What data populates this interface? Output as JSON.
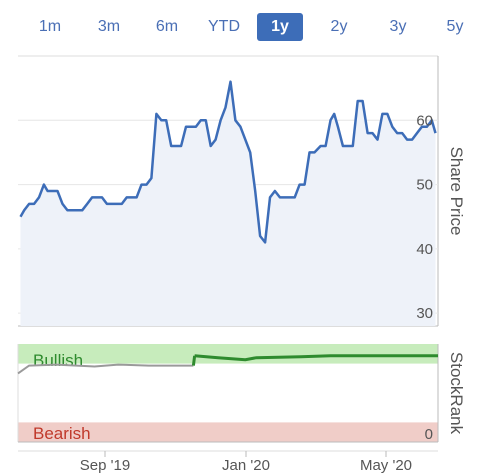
{
  "range_buttons": [
    {
      "label": "1m",
      "active": false
    },
    {
      "label": "3m",
      "active": false
    },
    {
      "label": "6m",
      "active": false
    },
    {
      "label": "YTD",
      "active": false
    },
    {
      "label": "1y",
      "active": true
    },
    {
      "label": "2y",
      "active": false
    },
    {
      "label": "3y",
      "active": false
    },
    {
      "label": "5y",
      "active": false
    }
  ],
  "chart_data": [
    {
      "type": "line",
      "ylabel": "Share Price",
      "ylim": [
        28,
        70
      ],
      "yticks": [
        30,
        40,
        50,
        60
      ],
      "color": "#3d6db8",
      "x": [
        "2019-07-03",
        "2019-07-06",
        "2019-07-10",
        "2019-07-14",
        "2019-07-18",
        "2019-07-22",
        "2019-07-25",
        "2019-07-29",
        "2019-08-02",
        "2019-08-06",
        "2019-08-10",
        "2019-08-14",
        "2019-08-18",
        "2019-08-22",
        "2019-08-26",
        "2019-08-30",
        "2019-09-03",
        "2019-09-07",
        "2019-09-11",
        "2019-09-15",
        "2019-09-19",
        "2019-09-23",
        "2019-09-27",
        "2019-10-01",
        "2019-10-05",
        "2019-10-09",
        "2019-10-13",
        "2019-10-17",
        "2019-10-21",
        "2019-10-25",
        "2019-10-29",
        "2019-11-02",
        "2019-11-06",
        "2019-11-10",
        "2019-11-14",
        "2019-11-18",
        "2019-11-22",
        "2019-11-26",
        "2019-11-30",
        "2019-12-04",
        "2019-12-08",
        "2019-12-12",
        "2019-12-16",
        "2019-12-20",
        "2019-12-24",
        "2019-12-28",
        "2020-01-01",
        "2020-01-05",
        "2020-01-09",
        "2020-01-13",
        "2020-01-17",
        "2020-01-21",
        "2020-01-25",
        "2020-01-29",
        "2020-02-02",
        "2020-02-06",
        "2020-02-10",
        "2020-02-14",
        "2020-02-18",
        "2020-02-22",
        "2020-02-26",
        "2020-03-02",
        "2020-03-06",
        "2020-03-10",
        "2020-03-13",
        "2020-03-16",
        "2020-03-20",
        "2020-03-24",
        "2020-03-28",
        "2020-04-01",
        "2020-04-05",
        "2020-04-09",
        "2020-04-13",
        "2020-04-17",
        "2020-04-21",
        "2020-04-25",
        "2020-04-29",
        "2020-05-03",
        "2020-05-07",
        "2020-05-11",
        "2020-05-15",
        "2020-05-19",
        "2020-05-23",
        "2020-05-27",
        "2020-05-31",
        "2020-06-03"
      ],
      "series": [
        {
          "values": [
            45,
            46,
            47,
            47,
            48,
            50,
            49,
            49,
            49,
            47,
            46,
            46,
            46,
            46,
            47,
            48,
            48,
            48,
            47,
            47,
            47,
            47,
            48,
            48,
            48,
            50,
            50,
            51,
            61,
            60,
            60,
            56,
            56,
            56,
            59,
            59,
            59,
            60,
            60,
            56,
            57,
            60,
            62,
            66,
            60,
            59,
            57,
            55,
            49,
            42,
            41,
            48,
            49,
            48,
            48,
            48,
            48,
            50,
            50,
            55,
            55,
            56,
            56,
            60,
            61,
            59,
            56,
            56,
            56,
            63,
            63,
            58,
            58,
            57,
            61,
            61,
            59,
            58,
            58,
            57,
            57,
            58,
            59,
            59,
            60,
            58
          ]
        }
      ]
    },
    {
      "type": "line",
      "ylabel": "StockRank",
      "ylim": [
        0,
        100
      ],
      "yticks": [
        0
      ],
      "zones": [
        {
          "label": "Bullish",
          "from": 80,
          "to": 100,
          "color": "#c7ecbc",
          "text_color": "#2e8b2e"
        },
        {
          "label": "Bearish",
          "from": 0,
          "to": 20,
          "color": "#f0cdc8",
          "text_color": "#c0392b"
        }
      ],
      "x_start": "2019-07-01",
      "x_end": "2020-06-05",
      "xticks": [
        "Sep '19",
        "Jan '20",
        "May '20"
      ],
      "series": [
        {
          "color": "#9a9a9a",
          "points": [
            [
              "2019-07-01",
              70
            ],
            [
              "2019-07-10",
              78
            ],
            [
              "2019-08-01",
              79
            ],
            [
              "2019-09-01",
              77
            ],
            [
              "2019-09-20",
              79
            ],
            [
              "2019-10-15",
              78
            ],
            [
              "2019-11-01",
              78
            ],
            [
              "2019-11-20",
              78
            ]
          ]
        },
        {
          "color": "#2e8b2e",
          "points": [
            [
              "2019-11-21",
              88
            ],
            [
              "2019-12-10",
              86
            ],
            [
              "2020-01-01",
              84
            ],
            [
              "2020-01-10",
              86
            ],
            [
              "2020-02-15",
              87
            ],
            [
              "2020-03-10",
              88
            ],
            [
              "2020-04-10",
              88
            ],
            [
              "2020-05-15",
              88
            ],
            [
              "2020-06-05",
              88
            ]
          ]
        }
      ]
    }
  ]
}
